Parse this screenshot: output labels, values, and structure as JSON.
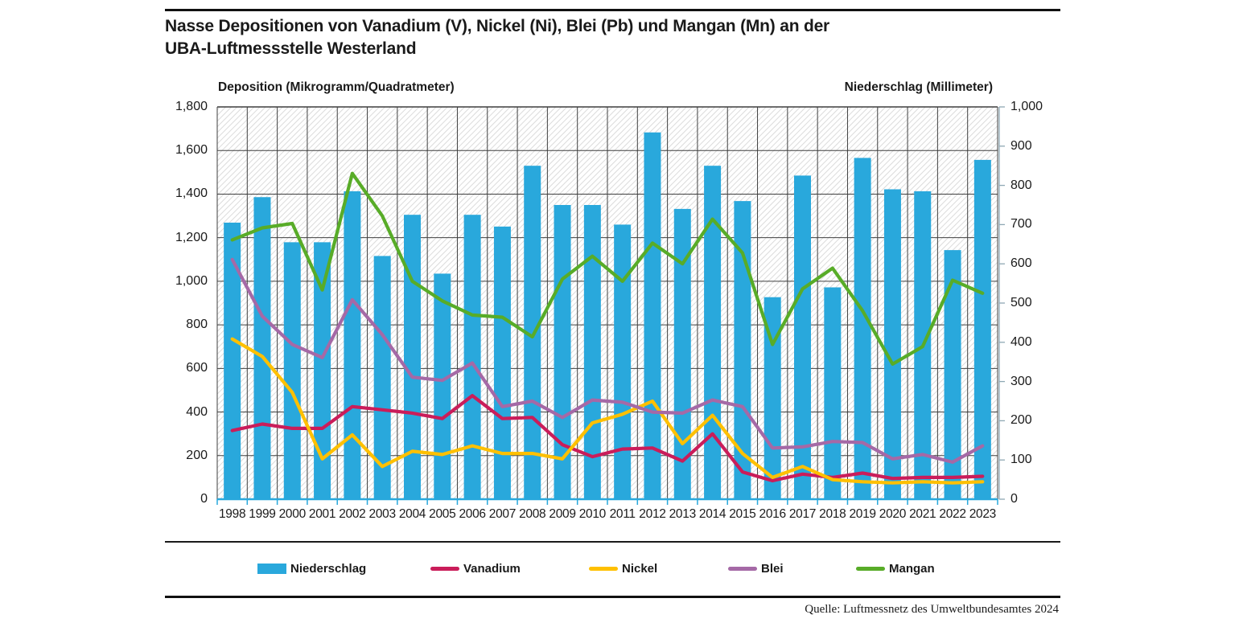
{
  "title": {
    "line1": "Nasse Depositionen von Vanadium (V), Nickel (Ni), Blei (Pb) und Mangan (Mn) an der",
    "line2": "UBA-Luftmessstelle Westerland"
  },
  "axis_headers": {
    "left": "Deposition (Mikrogramm/Quadratmeter)",
    "right": "Niederschlag (Millimeter)"
  },
  "source": "Quelle: Luftmessnetz des Umweltbundesamtes 2024",
  "legend": [
    {
      "label": "Niederschlag",
      "swatch": "rect",
      "color": "#29A8DC"
    },
    {
      "label": "Vanadium",
      "swatch": "line",
      "color": "#CA1D5A"
    },
    {
      "label": "Nickel",
      "swatch": "line",
      "color": "#FFC000"
    },
    {
      "label": "Blei",
      "swatch": "line",
      "color": "#A569A6"
    },
    {
      "label": "Mangan",
      "swatch": "line",
      "color": "#58AC28"
    }
  ],
  "colors": {
    "bar": "#29A8DC",
    "vanadium": "#CA1D5A",
    "nickel": "#FFC000",
    "blei": "#A569A6",
    "mangan": "#58AC28",
    "gridline": "#3F3F3F",
    "hatch": "#DBDBDB",
    "baseline": "#29A8DC",
    "right_axis": "#8FA8B4",
    "text": "#1a1a1a"
  },
  "chart_data": {
    "type": "bar",
    "subtype": "combo-bar-line",
    "title": "Nasse Depositionen von Vanadium (V), Nickel (Ni), Blei (Pb) und Mangan (Mn) an der UBA-Luftmessstelle Westerland",
    "categories": [
      1998,
      1999,
      2000,
      2001,
      2002,
      2003,
      2004,
      2005,
      2006,
      2007,
      2008,
      2009,
      2010,
      2011,
      2012,
      2013,
      2014,
      2015,
      2016,
      2017,
      2018,
      2019,
      2020,
      2021,
      2022,
      2023
    ],
    "series": [
      {
        "name": "Niederschlag",
        "type": "bar",
        "axis": "right",
        "unit": "mm",
        "values": [
          705,
          770,
          655,
          655,
          785,
          620,
          725,
          575,
          725,
          695,
          850,
          750,
          750,
          700,
          935,
          740,
          850,
          760,
          515,
          825,
          540,
          870,
          790,
          785,
          635,
          865
        ]
      },
      {
        "name": "Vanadium",
        "type": "line",
        "axis": "left",
        "unit": "µg/m²",
        "values": [
          315,
          345,
          325,
          325,
          425,
          410,
          395,
          370,
          475,
          370,
          375,
          250,
          195,
          230,
          235,
          175,
          300,
          125,
          85,
          115,
          100,
          120,
          95,
          100,
          100,
          105
        ]
      },
      {
        "name": "Nickel",
        "type": "line",
        "axis": "left",
        "unit": "µg/m²",
        "values": [
          735,
          655,
          490,
          185,
          295,
          150,
          220,
          205,
          245,
          210,
          210,
          185,
          350,
          390,
          450,
          255,
          385,
          210,
          100,
          150,
          90,
          80,
          75,
          80,
          75,
          80
        ]
      },
      {
        "name": "Blei",
        "type": "line",
        "axis": "left",
        "unit": "µg/m²",
        "values": [
          1100,
          840,
          710,
          650,
          915,
          755,
          560,
          545,
          625,
          425,
          450,
          375,
          455,
          445,
          400,
          395,
          455,
          425,
          235,
          240,
          265,
          260,
          185,
          205,
          170,
          245
        ]
      },
      {
        "name": "Mangan",
        "type": "line",
        "axis": "left",
        "unit": "µg/m²",
        "values": [
          1190,
          1245,
          1265,
          960,
          1495,
          1300,
          1000,
          910,
          845,
          835,
          745,
          1010,
          1115,
          1000,
          1175,
          1080,
          1285,
          1130,
          710,
          965,
          1060,
          865,
          620,
          700,
          1005,
          945
        ]
      }
    ],
    "left_axis": {
      "label": "Deposition (Mikrogramm/Quadratmeter)",
      "min": 0,
      "max": 1800,
      "step": 200,
      "tick_labels": [
        "1,800",
        "1,600",
        "1,400",
        "1,200",
        "1,000",
        "800",
        "600",
        "400",
        "200",
        "0"
      ]
    },
    "right_axis": {
      "label": "Niederschlag (Millimeter)",
      "min": 0,
      "max": 1000,
      "step": 100,
      "tick_labels": [
        "1,000",
        "900",
        "800",
        "700",
        "600",
        "500",
        "400",
        "300",
        "200",
        "100",
        "0"
      ]
    },
    "grid": true,
    "background": "diagonal-hatch",
    "legend_position": "bottom"
  }
}
